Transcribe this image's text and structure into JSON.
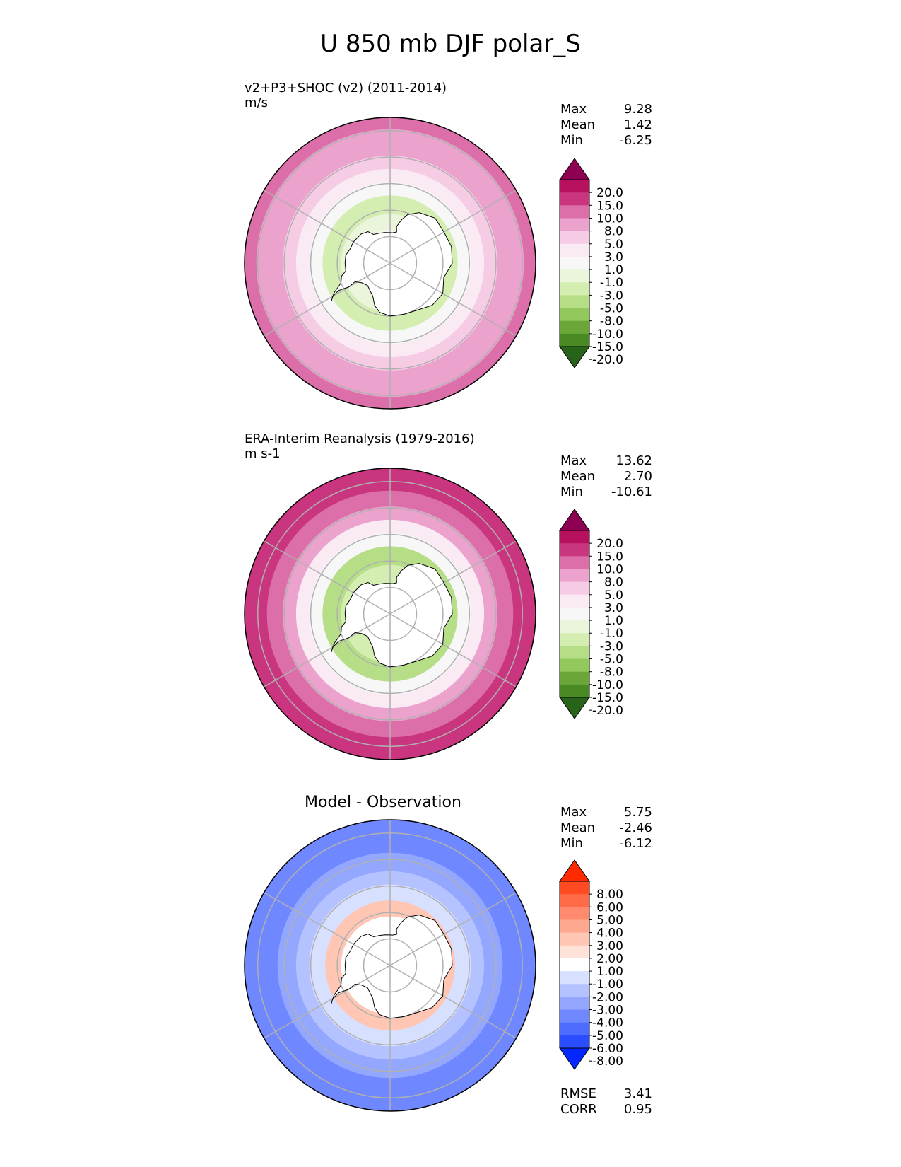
{
  "figure": {
    "title": "U 850 mb DJF polar_S"
  },
  "panels": [
    {
      "id": "test",
      "title": "v2+P3+SHOC (v2) (2011-2014)",
      "units": "m/s",
      "stats": [
        {
          "label": "Max",
          "value": "9.28"
        },
        {
          "label": "Mean",
          "value": "1.42"
        },
        {
          "label": "Min",
          "value": "-6.25"
        }
      ]
    },
    {
      "id": "reference",
      "title": "ERA-Interim Reanalysis (1979-2016)",
      "units": "m s-1",
      "stats": [
        {
          "label": "Max",
          "value": "13.62"
        },
        {
          "label": "Mean",
          "value": "2.70"
        },
        {
          "label": "Min",
          "value": "-10.61"
        }
      ]
    },
    {
      "id": "difference",
      "title": "Model - Observation",
      "units": "",
      "stats": [
        {
          "label": "Max",
          "value": "5.75"
        },
        {
          "label": "Mean",
          "value": "-2.46"
        },
        {
          "label": "Min",
          "value": "-6.12"
        }
      ],
      "extra_stats": [
        {
          "label": "RMSE",
          "value": "3.41"
        },
        {
          "label": "CORR",
          "value": "0.95"
        }
      ]
    }
  ],
  "chart_data": [
    {
      "type": "heatmap",
      "projection": "south-polar-stereographic",
      "title": "v2+P3+SHOC (v2) (2011-2014)",
      "units": "m/s",
      "colorbar": {
        "ticks": [
          "20.0",
          "15.0",
          "10.0",
          "8.0",
          "5.0",
          "3.0",
          "1.0",
          "-1.0",
          "-3.0",
          "-5.0",
          "-8.0",
          "-10.0",
          "-15.0",
          "-20.0"
        ],
        "colors": [
          "#8e0152",
          "#b6105e",
          "#c9357f",
          "#dc6fa9",
          "#eba2cd",
          "#f6cce5",
          "#faeaf3",
          "#f7f7f7",
          "#ebf5dc",
          "#d3eeb0",
          "#b6de86",
          "#92c85c",
          "#6ba639",
          "#4a8a25",
          "#276419"
        ]
      },
      "field_rings": [
        {
          "lat_from": -90,
          "lat_to": -78,
          "value": 0
        },
        {
          "lat_from": -78,
          "lat_to": -72,
          "value": -2
        },
        {
          "lat_from": -72,
          "lat_to": -65,
          "value": -4
        },
        {
          "lat_from": -65,
          "lat_to": -60,
          "value": 0
        },
        {
          "lat_from": -60,
          "lat_to": -55,
          "value": 2
        },
        {
          "lat_from": -55,
          "lat_to": -50,
          "value": 4
        },
        {
          "lat_from": -50,
          "lat_to": -40,
          "value": 6
        },
        {
          "lat_from": -40,
          "lat_to": -35,
          "value": 9
        }
      ]
    },
    {
      "type": "heatmap",
      "projection": "south-polar-stereographic",
      "title": "ERA-Interim Reanalysis (1979-2016)",
      "units": "m s-1",
      "colorbar": {
        "ticks": [
          "20.0",
          "15.0",
          "10.0",
          "8.0",
          "5.0",
          "3.0",
          "1.0",
          "-1.0",
          "-3.0",
          "-5.0",
          "-8.0",
          "-10.0",
          "-15.0",
          "-20.0"
        ],
        "colors": [
          "#8e0152",
          "#b6105e",
          "#c9357f",
          "#dc6fa9",
          "#eba2cd",
          "#f6cce5",
          "#faeaf3",
          "#f7f7f7",
          "#ebf5dc",
          "#d3eeb0",
          "#b6de86",
          "#92c85c",
          "#6ba639",
          "#4a8a25",
          "#276419"
        ]
      },
      "field_rings": [
        {
          "lat_from": -90,
          "lat_to": -80,
          "value": 1
        },
        {
          "lat_from": -80,
          "lat_to": -72,
          "value": -3
        },
        {
          "lat_from": -72,
          "lat_to": -65,
          "value": -6
        },
        {
          "lat_from": -65,
          "lat_to": -60,
          "value": 0
        },
        {
          "lat_from": -60,
          "lat_to": -55,
          "value": 3
        },
        {
          "lat_from": -55,
          "lat_to": -50,
          "value": 6
        },
        {
          "lat_from": -50,
          "lat_to": -44,
          "value": 9
        },
        {
          "lat_from": -44,
          "lat_to": -35,
          "value": 12
        }
      ]
    },
    {
      "type": "heatmap",
      "projection": "south-polar-stereographic",
      "title": "Model - Observation",
      "colorbar": {
        "ticks": [
          "8.00",
          "6.00",
          "5.00",
          "4.00",
          "3.00",
          "2.00",
          "1.00",
          "-1.00",
          "-2.00",
          "-3.00",
          "-4.00",
          "-5.00",
          "-6.00",
          "-8.00"
        ],
        "colors": [
          "#ff2a00",
          "#ff4a22",
          "#ff6a48",
          "#ff8a6e",
          "#ffa890",
          "#ffc6b4",
          "#ffe2d8",
          "#ffffff",
          "#d8e0ff",
          "#b4c2ff",
          "#94a7ff",
          "#7088ff",
          "#4d6cff",
          "#2a4eff",
          "#0427ff"
        ]
      },
      "field_rings": [
        {
          "lat_from": -90,
          "lat_to": -72,
          "value": 0
        },
        {
          "lat_from": -72,
          "lat_to": -66,
          "value": 2.5
        },
        {
          "lat_from": -66,
          "lat_to": -60,
          "value": -1.5
        },
        {
          "lat_from": -60,
          "lat_to": -55,
          "value": -2.5
        },
        {
          "lat_from": -55,
          "lat_to": -48,
          "value": -3.5
        },
        {
          "lat_from": -48,
          "lat_to": -35,
          "value": -4.5
        }
      ]
    }
  ]
}
